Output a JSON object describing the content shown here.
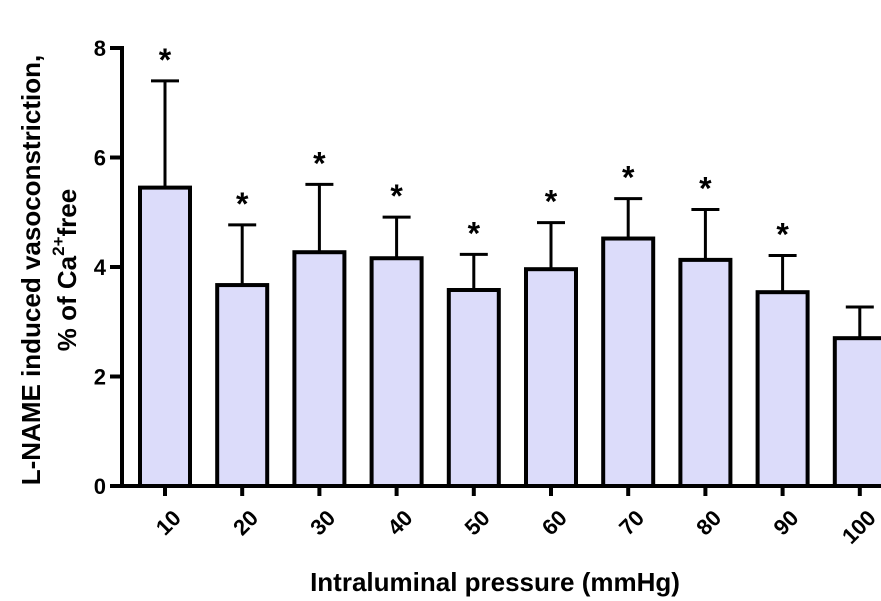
{
  "chart_data": {
    "type": "bar",
    "categories": [
      "10",
      "20",
      "30",
      "40",
      "50",
      "60",
      "70",
      "80",
      "90",
      "100"
    ],
    "values": [
      5.45,
      3.67,
      4.27,
      4.16,
      3.58,
      3.96,
      4.52,
      4.13,
      3.54,
      2.7
    ],
    "errors_upper": [
      7.4,
      4.77,
      5.51,
      4.91,
      4.23,
      4.81,
      5.25,
      5.05,
      4.21,
      3.27
    ],
    "significant": [
      true,
      true,
      true,
      true,
      true,
      true,
      true,
      true,
      true,
      false
    ],
    "significance_marker": "*",
    "xlabel": "Intraluminal pressure (mmHg)",
    "ylabel_line1": "L-NAME induced vasoconstriction,",
    "ylabel_line2_prefix": "% of Ca",
    "ylabel_line2_sup": "2+",
    "ylabel_line2_suffix": "free",
    "ylim": [
      0,
      8
    ],
    "yticks": [
      "0",
      "2",
      "4",
      "6",
      "8"
    ],
    "ytick_values": [
      0,
      2,
      4,
      6,
      8
    ],
    "grid": false,
    "bar_color": "#dcdcfa",
    "edge_color": "#000000"
  }
}
